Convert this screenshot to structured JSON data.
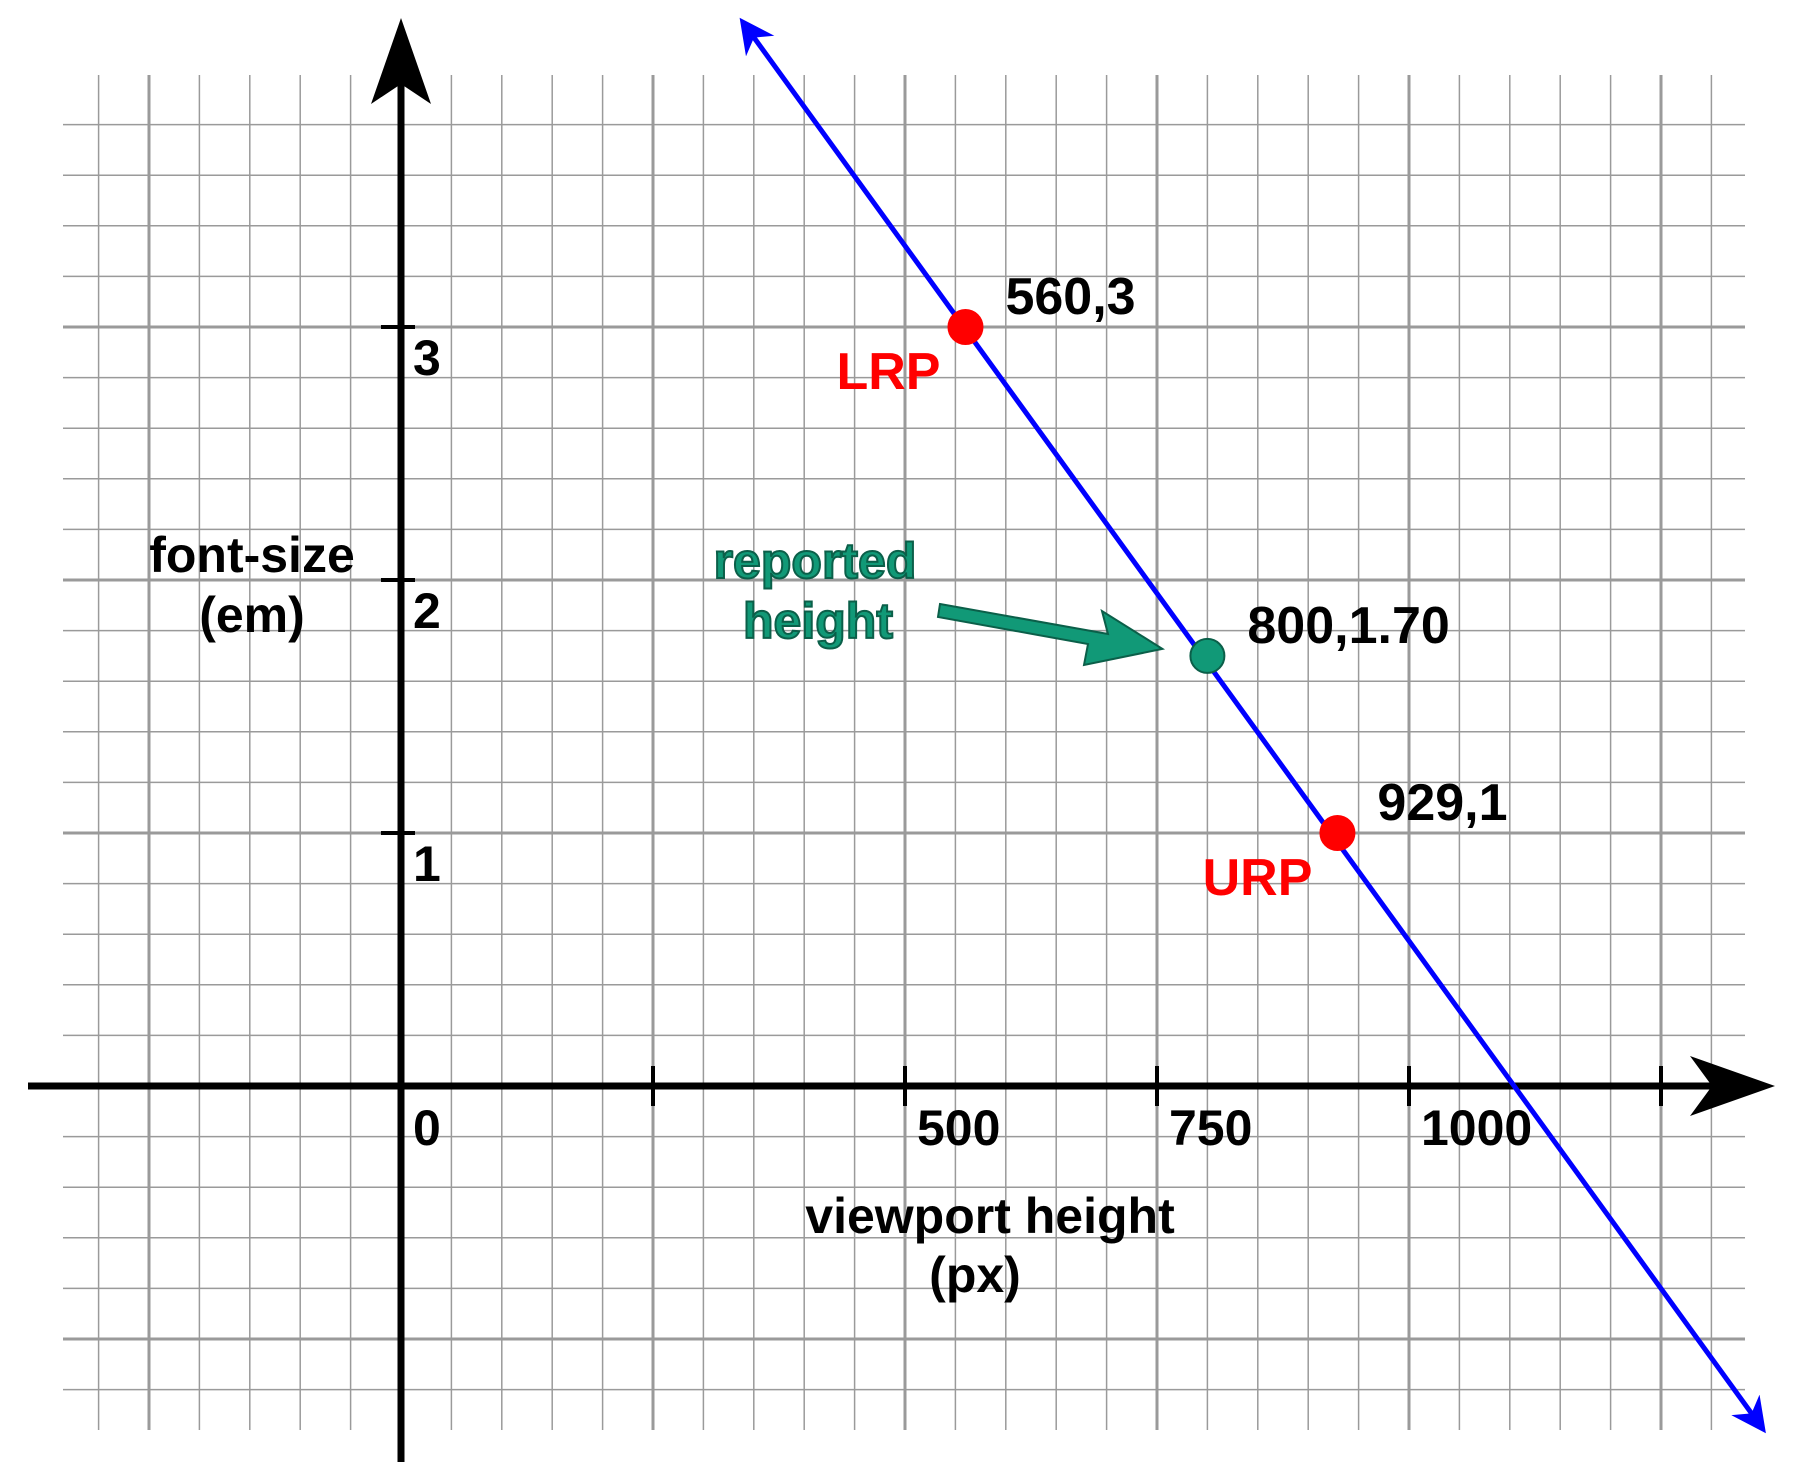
{
  "chart_data": {
    "type": "line",
    "title": "",
    "xlabel_line1": "viewport height",
    "xlabel_line2": "(px)",
    "ylabel_line1": "font-size",
    "ylabel_line2": "(em)",
    "x_ticks": [
      {
        "value": 0,
        "label": "0"
      },
      {
        "value": 250,
        "label": ""
      },
      {
        "value": 500,
        "label": "500"
      },
      {
        "value": 750,
        "label": "750"
      },
      {
        "value": 1000,
        "label": "1000"
      },
      {
        "value": 1250,
        "label": ""
      }
    ],
    "y_ticks": [
      {
        "value": 1,
        "label": "1"
      },
      {
        "value": 2,
        "label": "2"
      },
      {
        "value": 3,
        "label": "3"
      }
    ],
    "xlim": [
      -375,
      1325
    ],
    "ylim": [
      -1.5,
      4.2
    ],
    "grid": true,
    "line": {
      "color": "#0000ff",
      "from": {
        "x": 340,
        "y": 4.2
      },
      "to": {
        "x": 1350,
        "y": -1.35
      }
    },
    "points": [
      {
        "x": 560,
        "y": 3,
        "value_label": "560,3",
        "tag": "LRP",
        "color": "#ff0000",
        "tag_color": "#ff0000"
      },
      {
        "x": 800,
        "y": 1.7,
        "value_label": "800,1.70",
        "tag": "",
        "color": "#119977",
        "tag_color": "#119977"
      },
      {
        "x": 929,
        "y": 1,
        "value_label": "929,1",
        "tag": "URP",
        "color": "#ff0000",
        "tag_color": "#ff0000"
      }
    ],
    "annotation": {
      "line1": "reported",
      "line2": "height",
      "color": "#119977",
      "points_to_x": 800,
      "points_to_y": 1.7
    }
  }
}
